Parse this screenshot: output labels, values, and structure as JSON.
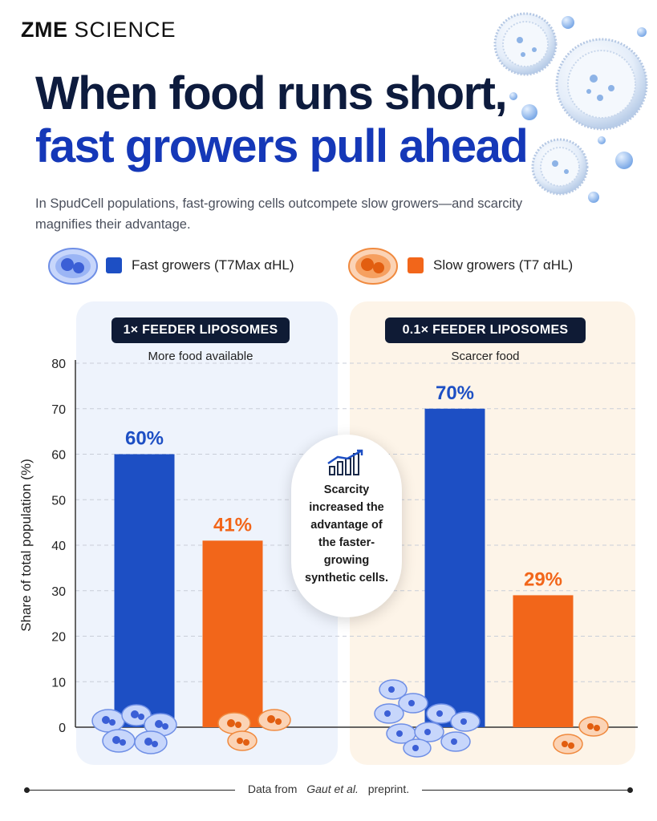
{
  "brand": {
    "bold": "ZME",
    "rest": "SCIENCE"
  },
  "header": {
    "title_line1": "When food runs short,",
    "title_line2": "fast growers pull ahead",
    "subtitle": "In SpudCell populations, fast-growing cells outcompete slow growers—and scarcity magnifies their advantage."
  },
  "legend": [
    {
      "label": "Fast growers (T7Max αHL)",
      "color": "#1d4fc4"
    },
    {
      "label": "Slow growers (T7 αHL)",
      "color": "#f2661a"
    }
  ],
  "panels": [
    {
      "pill": "1× FEEDER LIPOSOMES",
      "tag": "More food available"
    },
    {
      "pill": "0.1× FEEDER LIPOSOMES",
      "tag": "Scarcer food"
    }
  ],
  "callout": "Scarcity increased the advantage of the faster-growing synthetic cells.",
  "footer": {
    "prefix": "Data from ",
    "italic": "Gaut et al.",
    "suffix": " preprint."
  },
  "chart_data": {
    "type": "bar",
    "categories": [
      "1× FEEDER LIPOSOMES",
      "0.1× FEEDER LIPOSOMES"
    ],
    "series": [
      {
        "name": "Fast growers (T7Max αHL)",
        "values": [
          60,
          70
        ],
        "labels": [
          "60%",
          "70%"
        ],
        "color": "#1d4fc4"
      },
      {
        "name": "Slow growers (T7 αHL)",
        "values": [
          41,
          29
        ],
        "labels": [
          "41%",
          "29%"
        ],
        "color": "#f2661a"
      }
    ],
    "ylabel": "Share of total population (%)",
    "ylim": [
      0,
      80
    ],
    "yticks": [
      0,
      10,
      20,
      30,
      40,
      50,
      60,
      70,
      80
    ],
    "grid": true
  }
}
